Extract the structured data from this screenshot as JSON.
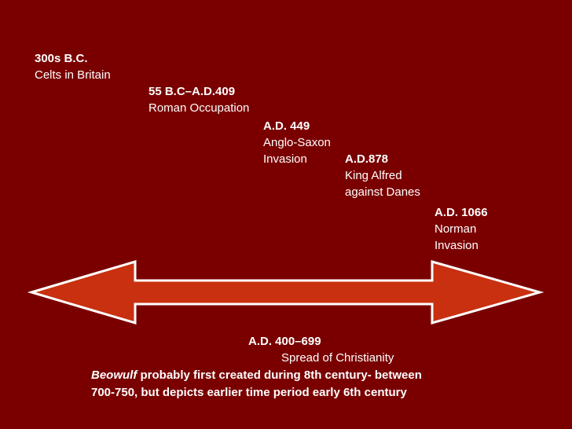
{
  "colors": {
    "background": "#7a0000",
    "arrow_fill": "#c83010",
    "arrow_stroke": "#ffffff",
    "text": "#ffffff"
  },
  "events": [
    {
      "date": "300s B.C.",
      "desc": [
        "Celts in Britain"
      ]
    },
    {
      "date": "55 B.C–A.D.409",
      "desc": [
        "Roman Occupation"
      ]
    },
    {
      "date": "A.D. 449",
      "desc": [
        "Anglo-Saxon",
        "Invasion"
      ]
    },
    {
      "date": "A.D.878",
      "desc": [
        "King Alfred",
        "against Danes"
      ]
    },
    {
      "date": "A.D. 1066",
      "desc": [
        "Norman",
        "Invasion"
      ]
    }
  ],
  "span": {
    "date": "A.D. 400–699",
    "desc": "Spread of Christianity"
  },
  "note": {
    "title_italic": "Beowulf",
    "line1_rest": " probably first created during 8th century- between",
    "line2": "700-750, but depicts earlier time period early 6th century"
  }
}
